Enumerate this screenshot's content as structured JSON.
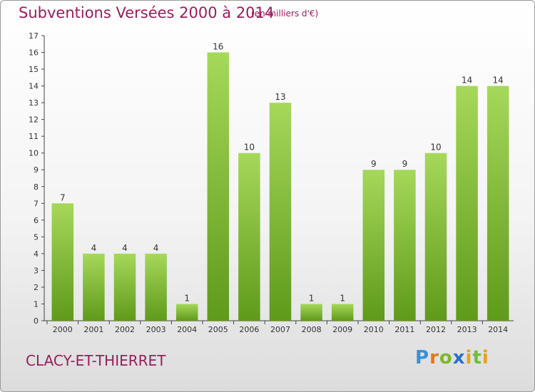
{
  "title": "Subventions Versées 2000 à 2014",
  "subtitle": "(en milliers d'€)",
  "town": "CLACY-ET-THIERRET",
  "brand": "Proxiti",
  "colors": {
    "title": "#9c1c5c",
    "bar_top": "#a6d85a",
    "bar_bottom": "#5f9a1a",
    "axis": "#444444"
  },
  "chart_data": {
    "type": "bar",
    "categories": [
      "2000",
      "2001",
      "2002",
      "2003",
      "2004",
      "2005",
      "2006",
      "2007",
      "2008",
      "2009",
      "2010",
      "2011",
      "2012",
      "2013",
      "2014"
    ],
    "values": [
      7,
      4,
      4,
      4,
      1,
      16,
      10,
      13,
      1,
      1,
      9,
      9,
      10,
      14,
      14
    ],
    "ylim": [
      0,
      17
    ],
    "yticks": [
      0,
      1,
      2,
      3,
      4,
      5,
      6,
      7,
      8,
      9,
      10,
      11,
      12,
      13,
      14,
      15,
      16,
      17
    ],
    "grid": false,
    "data_labels": true
  }
}
